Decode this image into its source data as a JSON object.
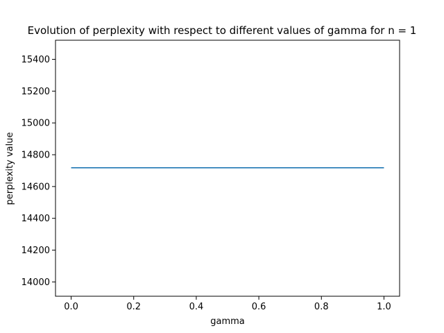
{
  "chart_data": {
    "type": "line",
    "title": "Evolution of perplexity with respect to different values of gamma for n = 1",
    "xlabel": "gamma",
    "ylabel": "perplexity value",
    "xlim": [
      -0.05,
      1.05
    ],
    "ylim": [
      13910,
      15520
    ],
    "grid": false,
    "x_ticks": [
      0.0,
      0.2,
      0.4,
      0.6,
      0.8,
      1.0
    ],
    "x_tick_labels": [
      "0.0",
      "0.2",
      "0.4",
      "0.6",
      "0.8",
      "1.0"
    ],
    "y_ticks": [
      14000,
      14200,
      14400,
      14600,
      14800,
      15000,
      15200,
      15400
    ],
    "y_tick_labels": [
      "14000",
      "14200",
      "14400",
      "14600",
      "14800",
      "15000",
      "15200",
      "15400"
    ],
    "series": [
      {
        "color": "#1f77b4",
        "x": [
          0.0,
          1.0
        ],
        "y": [
          14718,
          14718
        ]
      }
    ]
  }
}
